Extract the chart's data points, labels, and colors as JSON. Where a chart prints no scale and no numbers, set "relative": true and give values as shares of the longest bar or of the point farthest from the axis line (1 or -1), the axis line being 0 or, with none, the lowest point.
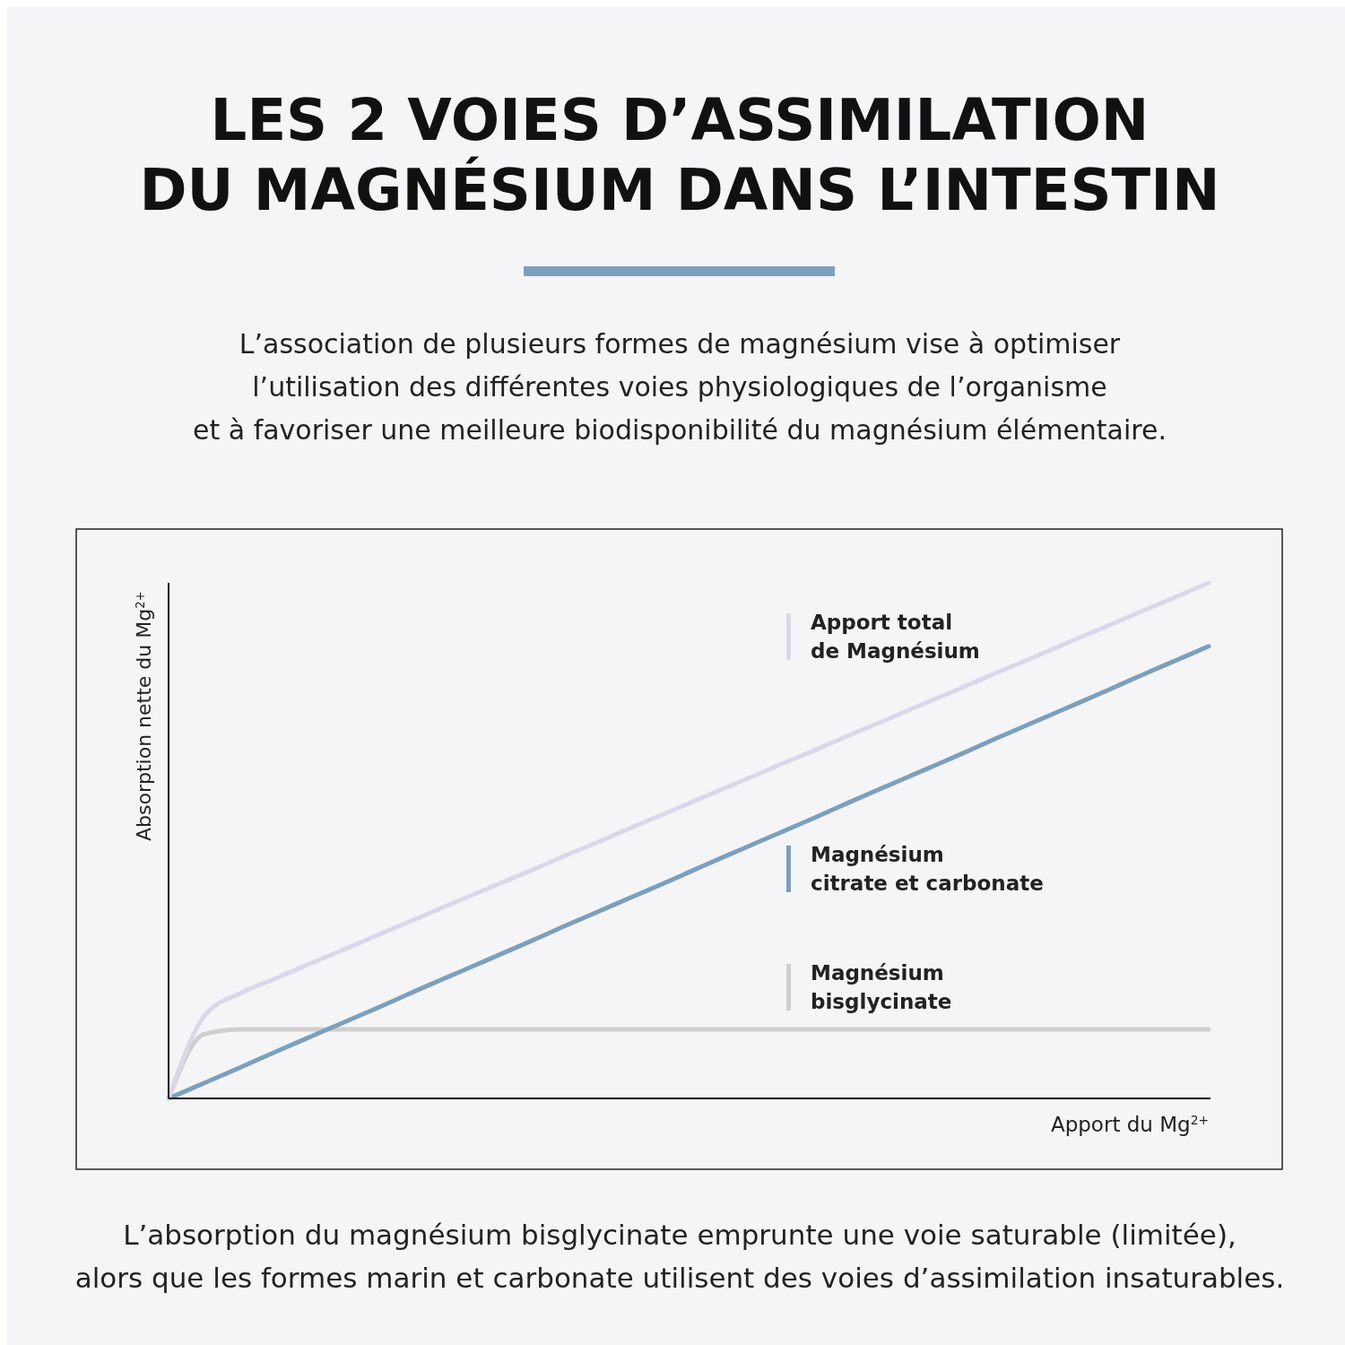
{
  "chart_data": {
    "type": "line",
    "relative": true,
    "title": "LES 2 VOIES D’ASSIMILATION\nDU MAGNÉSIUM DANS L’INTESTIN",
    "subtitle": "L’association de plusieurs formes de magnésium vise à optimiser\nl’utilisation des différentes voies physiologiques de l’organisme\net à favoriser une meilleure biodisponibilité du magnésium élémentaire.",
    "xlabel": "Apport du Mg$^{2+}$",
    "ylabel": "Absorption nette du Mg$^{2+}$",
    "annotations": [
      "L’absorption du magnésium bisglycinate emprunte une voie saturable (limitée),\nalors que les formes marin et carbonate utilisent des voies d’assimilation insaturables."
    ],
    "categories": [
      null,
      null,
      null,
      null,
      null,
      null,
      null,
      null,
      null,
      null,
      null,
      null,
      null,
      null,
      null,
      null,
      null,
      null,
      null,
      null,
      null,
      null,
      null,
      null,
      null,
      null,
      null,
      null,
      null,
      null
    ],
    "legend": "right",
    "series": [
      {
        "name": "Apport total\nde Magnésium",
        "color": "#dcd6ea",
        "values": [
          0,
          0.16,
          0.204,
          0.233,
          0.263,
          0.292,
          0.322,
          0.351,
          0.381,
          0.41,
          0.439,
          0.469,
          0.498,
          0.528,
          0.557,
          0.587,
          0.616,
          0.646,
          0.675,
          0.705,
          0.734,
          0.764,
          0.793,
          0.823,
          0.852,
          0.882,
          0.911,
          0.941,
          0.97,
          1
        ]
      },
      {
        "name": "Magnésium\ncitrate et carbonate",
        "color": "#7c9fbd",
        "values": [
          0,
          0.03,
          0.06,
          0.091,
          0.121,
          0.151,
          0.181,
          0.212,
          0.242,
          0.272,
          0.302,
          0.333,
          0.363,
          0.393,
          0.423,
          0.454,
          0.484,
          0.514,
          0.544,
          0.575,
          0.605,
          0.635,
          0.665,
          0.696,
          0.726,
          0.756,
          0.786,
          0.817,
          0.847,
          0.877
        ]
      },
      {
        "name": "Magnésium\nbisglycinate",
        "color": "#cfcfcf",
        "values": [
          0,
          0.125,
          0.134,
          0.134,
          0.134,
          0.134,
          0.134,
          0.134,
          0.134,
          0.134,
          0.134,
          0.134,
          0.134,
          0.134,
          0.134,
          0.134,
          0.134,
          0.134,
          0.134,
          0.134,
          0.134,
          0.134,
          0.134,
          0.134,
          0.134,
          0.134,
          0.134,
          0.134,
          0.134,
          0.134
        ]
      }
    ]
  }
}
